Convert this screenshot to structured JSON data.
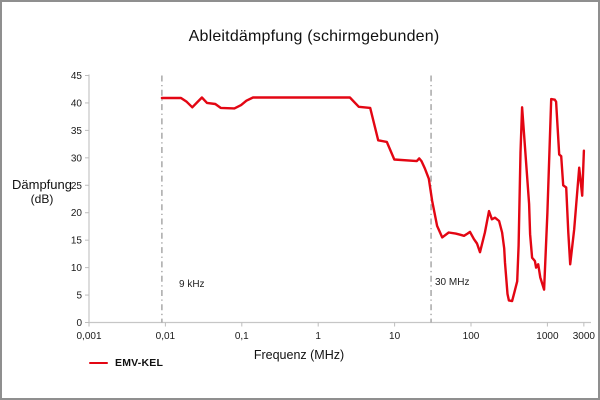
{
  "title": "Ableitdämpfung (schirmgebunden)",
  "colors": {
    "line": "#e30613",
    "axis": "#c6c6c6",
    "tick": "#bdbdbd",
    "dash_line": "#9b9b9b",
    "text": "#1a1a1a"
  },
  "legend": {
    "label": "EMV-KEL"
  },
  "chart_data": {
    "type": "line",
    "title": "Ableitdämpfung (schirmgebunden)",
    "xlabel": "Frequenz (MHz)",
    "ylabel_line1": "Dämpfung",
    "ylabel_line2": "(dB)",
    "x_scale": "log",
    "xlim": [
      0.001,
      3000
    ],
    "ylim": [
      0,
      45
    ],
    "grid": false,
    "legend_position": "bottom-left",
    "x_ticks": [
      {
        "v": 0.001,
        "label": "0,001"
      },
      {
        "v": 0.01,
        "label": "0,01"
      },
      {
        "v": 0.1,
        "label": "0,1"
      },
      {
        "v": 1,
        "label": "1"
      },
      {
        "v": 10,
        "label": "10"
      },
      {
        "v": 100,
        "label": "100"
      },
      {
        "v": 1000,
        "label": "1000"
      },
      {
        "v": 3000,
        "label": "3000"
      }
    ],
    "y_ticks": [
      0,
      5,
      10,
      15,
      20,
      25,
      30,
      35,
      40,
      45
    ],
    "vlines": [
      {
        "x": 0.009,
        "label": "9 kHz"
      },
      {
        "x": 30,
        "label": "30 MHz"
      }
    ],
    "series": [
      {
        "name": "EMV-KEL",
        "points": [
          [
            0.009,
            40.9
          ],
          [
            0.016,
            40.9
          ],
          [
            0.019,
            40.2
          ],
          [
            0.0225,
            39.2
          ],
          [
            0.026,
            40.1
          ],
          [
            0.03,
            41.0
          ],
          [
            0.035,
            40.0
          ],
          [
            0.045,
            39.8
          ],
          [
            0.053,
            39.1
          ],
          [
            0.08,
            39.0
          ],
          [
            0.098,
            39.6
          ],
          [
            0.115,
            40.4
          ],
          [
            0.14,
            41.0
          ],
          [
            2.6,
            41.0
          ],
          [
            3.4,
            39.3
          ],
          [
            4.8,
            39.1
          ],
          [
            6.1,
            33.2
          ],
          [
            7.9,
            32.9
          ],
          [
            9.9,
            29.7
          ],
          [
            19.5,
            29.4
          ],
          [
            21,
            29.9
          ],
          [
            22.5,
            29.4
          ],
          [
            25,
            28.0
          ],
          [
            28,
            26.2
          ],
          [
            31,
            22.2
          ],
          [
            36,
            17.6
          ],
          [
            42,
            15.5
          ],
          [
            51,
            16.4
          ],
          [
            63,
            16.2
          ],
          [
            72,
            16.0
          ],
          [
            81,
            15.8
          ],
          [
            90,
            16.2
          ],
          [
            97,
            16.5
          ],
          [
            109,
            15.2
          ],
          [
            120,
            14.4
          ],
          [
            131,
            12.8
          ],
          [
            152,
            16.4
          ],
          [
            172,
            20.3
          ],
          [
            188,
            18.8
          ],
          [
            206,
            19.1
          ],
          [
            233,
            18.5
          ],
          [
            255,
            16.4
          ],
          [
            272,
            13.5
          ],
          [
            279,
            10.9
          ],
          [
            300,
            5.2
          ],
          [
            313,
            4.0
          ],
          [
            345,
            3.9
          ],
          [
            370,
            5.5
          ],
          [
            403,
            7.5
          ],
          [
            420,
            14.0
          ],
          [
            445,
            31.0
          ],
          [
            466,
            39.2
          ],
          [
            576,
            21.6
          ],
          [
            593,
            16.1
          ],
          [
            631,
            11.8
          ],
          [
            687,
            11.2
          ],
          [
            711,
            10.0
          ],
          [
            757,
            10.6
          ],
          [
            808,
            8.2
          ],
          [
            906,
            6.0
          ],
          [
            1000,
            20.0
          ],
          [
            1120,
            40.7
          ],
          [
            1250,
            40.6
          ],
          [
            1300,
            40.2
          ],
          [
            1426,
            30.6
          ],
          [
            1516,
            30.3
          ],
          [
            1611,
            25.0
          ],
          [
            1762,
            24.6
          ],
          [
            1878,
            16.4
          ],
          [
            1991,
            10.6
          ],
          [
            2244,
            17.0
          ],
          [
            2611,
            28.2
          ],
          [
            2858,
            23.1
          ],
          [
            3000,
            31.3
          ]
        ]
      }
    ]
  }
}
